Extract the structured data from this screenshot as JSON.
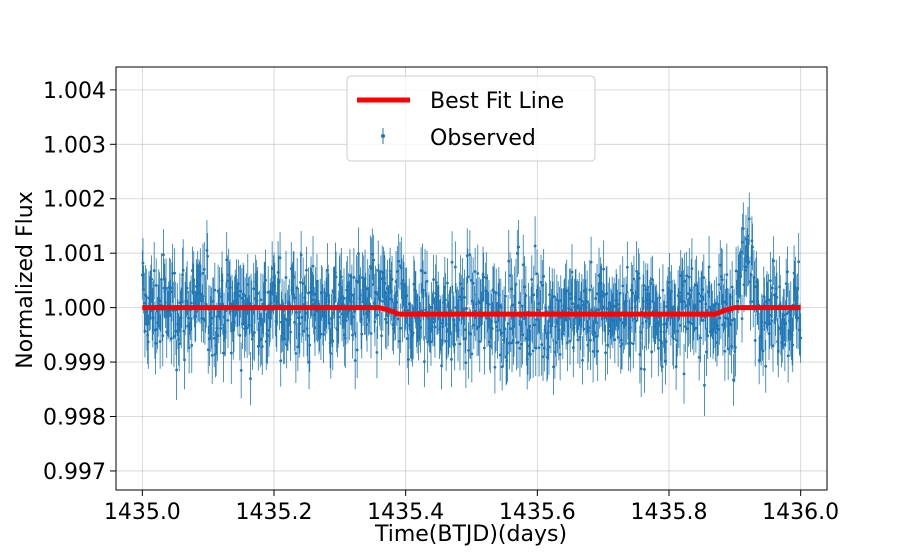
{
  "chart_data": {
    "type": "scatter",
    "title": "",
    "xlabel": "Time(BTJD)(days)",
    "ylabel": "Normalized Flux",
    "xlim": [
      1434.96,
      1436.04
    ],
    "ylim": [
      0.99665,
      1.00442
    ],
    "xticks": [
      1435.0,
      1435.2,
      1435.4,
      1435.6,
      1435.8,
      1436.0
    ],
    "xtick_labels": [
      "1435.0",
      "1435.2",
      "1435.4",
      "1435.6",
      "1435.8",
      "1436.0"
    ],
    "yticks": [
      0.997,
      0.998,
      0.999,
      1.0,
      1.001,
      1.002,
      1.003,
      1.004
    ],
    "ytick_labels": [
      "0.997",
      "0.998",
      "0.999",
      "1.000",
      "1.001",
      "1.002",
      "1.003",
      "1.004"
    ],
    "grid": true,
    "legend_position": "top-center",
    "series": [
      {
        "name": "Best Fit Line",
        "kind": "line",
        "color": "#ff0000",
        "x": [
          1435.0,
          1435.36,
          1435.375,
          1435.39,
          1435.87,
          1435.885,
          1435.9,
          1436.0
        ],
        "y": [
          1.0,
          1.0,
          0.99995,
          0.99988,
          0.99988,
          0.99995,
          1.0,
          1.0
        ]
      },
      {
        "name": "Observed",
        "kind": "errorbar",
        "color": "#1f77b4",
        "x_start": 1435.0,
        "x_end": 1436.0,
        "n_points": 1000,
        "typical_yerr": 0.0005,
        "noise_sigma": 0.00075,
        "baseline": 1.0,
        "transit_depth": 0.00012,
        "transit_ingress": 1435.38,
        "transit_egress": 1435.89
      }
    ]
  }
}
